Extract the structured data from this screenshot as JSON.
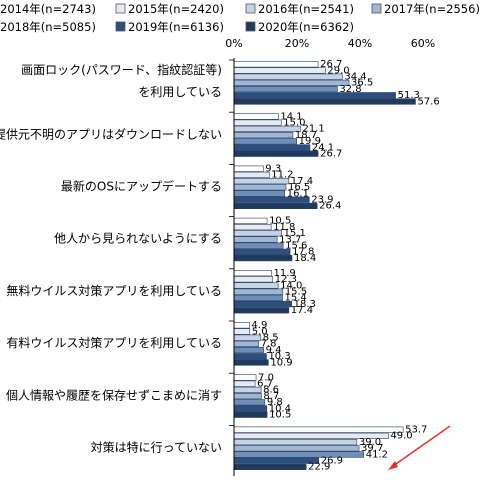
{
  "chart_data": {
    "type": "bar",
    "orientation": "horizontal",
    "title": "",
    "xlabel": "",
    "ylabel": "",
    "xlim": [
      0,
      60
    ],
    "x_ticks": [
      "0%",
      "20%",
      "40%",
      "60%"
    ],
    "legend_position": "top",
    "categories": [
      [
        "画面ロック(パスワード、指紋認証等)",
        "を利用している"
      ],
      [
        "提供元不明のアプリはダウンロードしない"
      ],
      [
        "最新のOSにアップデートする"
      ],
      [
        "他人から見られないようにする"
      ],
      [
        "無料ウイルス対策アプリを利用している"
      ],
      [
        "有料ウイルス対策アプリを利用している"
      ],
      [
        "個人情報や履歴を保存せずこまめに消す"
      ],
      [
        "対策は特に行っていない"
      ]
    ],
    "series": [
      {
        "name": "2014年(n=2743)",
        "color": "#ffffff",
        "values": [
          26.7,
          14.1,
          9.3,
          10.5,
          11.9,
          4.9,
          7.0,
          53.7
        ]
      },
      {
        "name": "2015年(n=2420)",
        "color": "#e6ebf3",
        "values": [
          29.0,
          15.0,
          11.2,
          11.8,
          12.3,
          5.0,
          6.7,
          49.0
        ]
      },
      {
        "name": "2016年(n=2541)",
        "color": "#c5d3e6",
        "values": [
          34.4,
          21.1,
          17.4,
          15.1,
          14.0,
          8.5,
          8.6,
          39.0
        ]
      },
      {
        "name": "2017年(n=2556)",
        "color": "#a0b6d4",
        "values": [
          36.5,
          18.7,
          16.5,
          13.7,
          15.5,
          7.8,
          8.7,
          39.7
        ]
      },
      {
        "name": "2018年(n=5085)",
        "color": "#6f8fbb",
        "values": [
          32.8,
          19.9,
          16.1,
          15.6,
          15.4,
          9.4,
          9.8,
          41.2
        ]
      },
      {
        "name": "2019年(n=6136)",
        "color": "#2d4f80",
        "values": [
          51.3,
          24.1,
          23.9,
          17.8,
          18.3,
          10.3,
          10.4,
          26.9
        ]
      },
      {
        "name": "2020年(n=6362)",
        "color": "#1f3a5f",
        "values": [
          57.6,
          26.7,
          26.4,
          18.4,
          17.4,
          10.9,
          10.5,
          22.9
        ]
      }
    ],
    "annotation": {
      "type": "arrow",
      "color": "#e8302a"
    },
    "grid": false
  }
}
